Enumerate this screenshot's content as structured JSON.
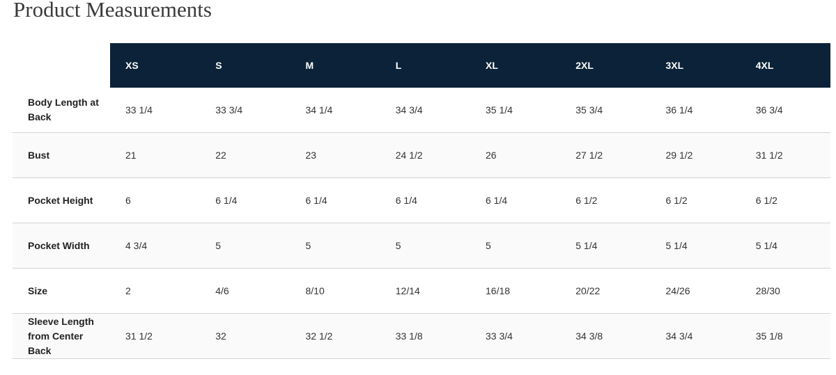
{
  "title": "Product Measurements",
  "table": {
    "headers": [
      "XS",
      "S",
      "M",
      "L",
      "XL",
      "2XL",
      "3XL",
      "4XL"
    ],
    "rows": [
      {
        "label": "Body Length at Back",
        "values": [
          "33 1/4",
          "33 3/4",
          "34 1/4",
          "34 3/4",
          "35 1/4",
          "35 3/4",
          "36 1/4",
          "36 3/4"
        ]
      },
      {
        "label": "Bust",
        "values": [
          "21",
          "22",
          "23",
          "24 1/2",
          "26",
          "27 1/2",
          "29 1/2",
          "31 1/2"
        ]
      },
      {
        "label": "Pocket Height",
        "values": [
          "6",
          "6 1/4",
          "6 1/4",
          "6 1/4",
          "6 1/4",
          "6 1/2",
          "6 1/2",
          "6 1/2"
        ]
      },
      {
        "label": "Pocket Width",
        "values": [
          "4 3/4",
          "5",
          "5",
          "5",
          "5",
          "5 1/4",
          "5 1/4",
          "5 1/4"
        ]
      },
      {
        "label": "Size",
        "values": [
          "2",
          "4/6",
          "8/10",
          "12/14",
          "16/18",
          "20/22",
          "24/26",
          "28/30"
        ]
      },
      {
        "label": "Sleeve Length from Center Back",
        "values": [
          "31 1/2",
          "32",
          "32 1/2",
          "33 1/8",
          "33 3/4",
          "34 3/8",
          "34 3/4",
          "35 1/8"
        ]
      }
    ]
  }
}
